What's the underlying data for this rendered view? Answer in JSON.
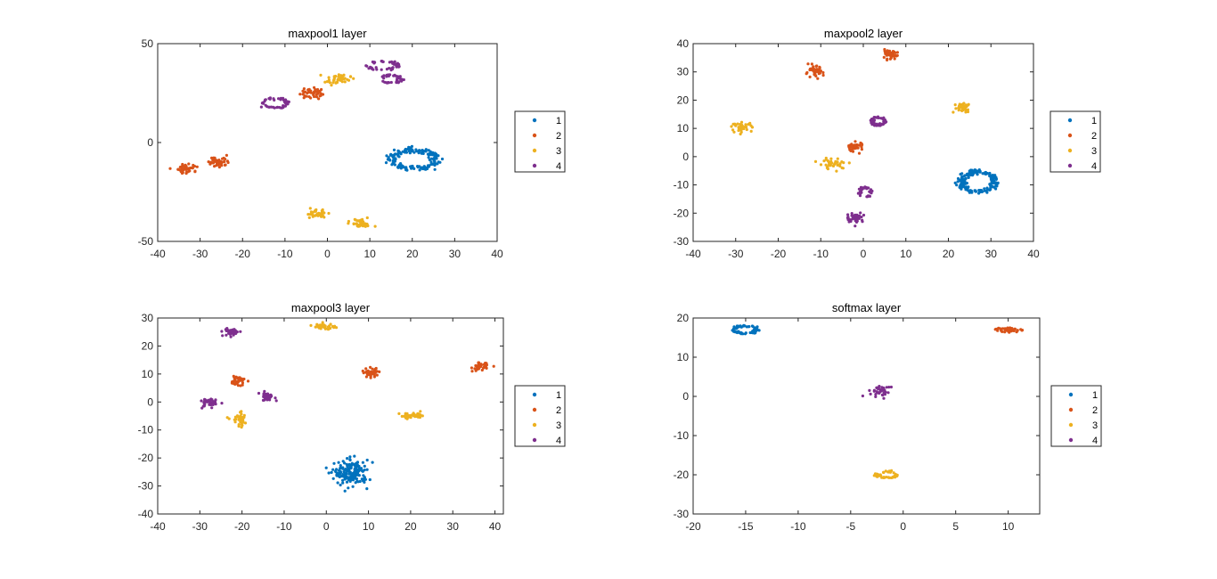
{
  "figure": {
    "background": "#ffffff"
  },
  "series_colors": {
    "1": "#0072BD",
    "2": "#D95319",
    "3": "#EDB120",
    "4": "#7E2F8E"
  },
  "chart_data": [
    {
      "type": "scatter",
      "title": "maxpool1 layer",
      "xlim": [
        -40,
        40
      ],
      "ylim": [
        -50,
        50
      ],
      "xticks": [
        "-40",
        "-30",
        "-20",
        "-10",
        "0",
        "10",
        "20",
        "30",
        "40"
      ],
      "yticks": [
        "-50",
        "0",
        "50"
      ],
      "legend": {
        "position": "right",
        "entries": [
          "1",
          "2",
          "3",
          "4"
        ]
      },
      "series": [
        {
          "name": "1",
          "clusters": [
            {
              "cx": 20.5,
              "cy": -8.5,
              "rx": 6.5,
              "ry": 6.0,
              "shape": "ring",
              "n": 160
            }
          ]
        },
        {
          "name": "2",
          "clusters": [
            {
              "cx": -33,
              "cy": -13,
              "rx": 2.5,
              "ry": 2.5,
              "shape": "blob",
              "n": 45
            },
            {
              "cx": -25.5,
              "cy": -9.5,
              "rx": 2.5,
              "ry": 3.0,
              "shape": "blob",
              "n": 45
            },
            {
              "cx": -4,
              "cy": 25,
              "rx": 2.5,
              "ry": 3.0,
              "shape": "blob",
              "n": 45
            }
          ]
        },
        {
          "name": "3",
          "clusters": [
            {
              "cx": 2.5,
              "cy": 32,
              "rx": 3.0,
              "ry": 2.5,
              "shape": "blob",
              "n": 45
            },
            {
              "cx": -2.5,
              "cy": -36,
              "rx": 2.5,
              "ry": 2.0,
              "shape": "blob",
              "n": 40
            },
            {
              "cx": 8,
              "cy": -41,
              "rx": 2.5,
              "ry": 2.5,
              "shape": "blob",
              "n": 40
            }
          ]
        },
        {
          "name": "4",
          "clusters": [
            {
              "cx": -12.5,
              "cy": 20,
              "rx": 3.5,
              "ry": 3.0,
              "shape": "ring",
              "n": 45
            },
            {
              "cx": 13,
              "cy": 39,
              "rx": 4.5,
              "ry": 2.5,
              "shape": "ring",
              "n": 45
            },
            {
              "cx": 15,
              "cy": 32,
              "rx": 3.0,
              "ry": 2.5,
              "shape": "ring",
              "n": 40
            }
          ]
        }
      ]
    },
    {
      "type": "scatter",
      "title": "maxpool2 layer",
      "xlim": [
        -40,
        40
      ],
      "ylim": [
        -30,
        40
      ],
      "xticks": [
        "-40",
        "-30",
        "-20",
        "-10",
        "0",
        "10",
        "20",
        "30",
        "40"
      ],
      "yticks": [
        "-30",
        "-20",
        "-10",
        "0",
        "10",
        "20",
        "30",
        "40"
      ],
      "legend": {
        "position": "right",
        "entries": [
          "1",
          "2",
          "3",
          "4"
        ]
      },
      "series": [
        {
          "name": "1",
          "clusters": [
            {
              "cx": 27,
              "cy": -9,
              "rx": 5.0,
              "ry": 4.5,
              "shape": "ring",
              "n": 170
            }
          ]
        },
        {
          "name": "2",
          "clusters": [
            {
              "cx": -11.5,
              "cy": 30,
              "rx": 2.0,
              "ry": 2.0,
              "shape": "blob",
              "n": 45
            },
            {
              "cx": 6,
              "cy": 36,
              "rx": 2.0,
              "ry": 1.5,
              "shape": "blob",
              "n": 40
            },
            {
              "cx": -2,
              "cy": 3.5,
              "rx": 2.0,
              "ry": 1.8,
              "shape": "blob",
              "n": 40
            }
          ]
        },
        {
          "name": "3",
          "clusters": [
            {
              "cx": -28.5,
              "cy": 10.5,
              "rx": 2.3,
              "ry": 1.5,
              "shape": "blob",
              "n": 40
            },
            {
              "cx": -7,
              "cy": -2.5,
              "rx": 3.5,
              "ry": 2.0,
              "shape": "blob",
              "n": 40
            },
            {
              "cx": 23.5,
              "cy": 17.5,
              "rx": 2.0,
              "ry": 2.0,
              "shape": "blob",
              "n": 40
            }
          ]
        },
        {
          "name": "4",
          "clusters": [
            {
              "cx": 3.5,
              "cy": 12.5,
              "rx": 2.0,
              "ry": 1.8,
              "shape": "ring",
              "n": 45
            },
            {
              "cx": 0.5,
              "cy": -12.5,
              "rx": 1.8,
              "ry": 2.0,
              "shape": "ring",
              "n": 35
            },
            {
              "cx": -2,
              "cy": -21.5,
              "rx": 2.0,
              "ry": 1.8,
              "shape": "blob",
              "n": 40
            }
          ]
        }
      ]
    },
    {
      "type": "scatter",
      "title": "maxpool3 layer",
      "xlim": [
        -40,
        42
      ],
      "ylim": [
        -40,
        30
      ],
      "xticks": [
        "-40",
        "-30",
        "-20",
        "-10",
        "0",
        "10",
        "20",
        "30",
        "40"
      ],
      "yticks": [
        "-40",
        "-30",
        "-20",
        "-10",
        "0",
        "10",
        "20",
        "30"
      ],
      "legend": {
        "position": "right",
        "entries": [
          "1",
          "2",
          "3",
          "4"
        ]
      },
      "series": [
        {
          "name": "1",
          "clusters": [
            {
              "cx": 6,
              "cy": -25.5,
              "rx": 4.0,
              "ry": 4.5,
              "shape": "blob",
              "n": 170
            }
          ]
        },
        {
          "name": "2",
          "clusters": [
            {
              "cx": -21,
              "cy": 7.5,
              "rx": 1.8,
              "ry": 1.8,
              "shape": "blob",
              "n": 40
            },
            {
              "cx": 10.5,
              "cy": 10.5,
              "rx": 2.0,
              "ry": 1.5,
              "shape": "blob",
              "n": 40
            },
            {
              "cx": 36.5,
              "cy": 12.5,
              "rx": 1.8,
              "ry": 1.5,
              "shape": "blob",
              "n": 40
            }
          ]
        },
        {
          "name": "3",
          "clusters": [
            {
              "cx": -0.5,
              "cy": 27,
              "rx": 2.5,
              "ry": 1.0,
              "shape": "blob",
              "n": 40
            },
            {
              "cx": -20.5,
              "cy": -6.5,
              "rx": 2.0,
              "ry": 2.5,
              "shape": "blob",
              "n": 35
            },
            {
              "cx": 20.5,
              "cy": -5,
              "rx": 3.0,
              "ry": 1.0,
              "shape": "blob",
              "n": 40
            }
          ]
        },
        {
          "name": "4",
          "clusters": [
            {
              "cx": -22.5,
              "cy": 25,
              "rx": 2.0,
              "ry": 1.5,
              "shape": "blob",
              "n": 40
            },
            {
              "cx": -28,
              "cy": -0.5,
              "rx": 1.8,
              "ry": 1.8,
              "shape": "blob",
              "n": 40
            },
            {
              "cx": -14,
              "cy": 2,
              "rx": 1.8,
              "ry": 1.5,
              "shape": "blob",
              "n": 35
            }
          ]
        }
      ]
    },
    {
      "type": "scatter",
      "title": "softmax layer",
      "xlim": [
        -20,
        13
      ],
      "ylim": [
        -30,
        20
      ],
      "xticks": [
        "-20",
        "-15",
        "-10",
        "-5",
        "0",
        "5",
        "10"
      ],
      "yticks": [
        "-30",
        "-20",
        "-10",
        "0",
        "10",
        "20"
      ],
      "legend": {
        "position": "right",
        "entries": [
          "1",
          "2",
          "3",
          "4"
        ]
      },
      "series": [
        {
          "name": "1",
          "clusters": [
            {
              "cx": -15,
              "cy": 17,
              "rx": 1.3,
              "ry": 1.2,
              "shape": "ring",
              "n": 60
            }
          ]
        },
        {
          "name": "2",
          "clusters": [
            {
              "cx": 10,
              "cy": 17,
              "rx": 1.2,
              "ry": 0.6,
              "shape": "blob",
              "n": 45
            }
          ]
        },
        {
          "name": "3",
          "clusters": [
            {
              "cx": -1.5,
              "cy": -20,
              "rx": 1.2,
              "ry": 1.0,
              "shape": "ring",
              "n": 45
            }
          ]
        },
        {
          "name": "4",
          "clusters": [
            {
              "cx": -2.3,
              "cy": 1.5,
              "rx": 1.0,
              "ry": 1.6,
              "shape": "blob",
              "n": 40
            }
          ]
        }
      ]
    }
  ]
}
